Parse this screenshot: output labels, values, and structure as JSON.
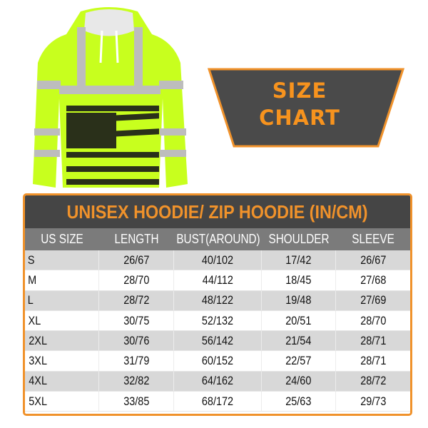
{
  "banner": {
    "line1": "SIZE",
    "line2": "CHART"
  },
  "colors": {
    "accent_orange": "#f0922b",
    "title_bg": "#454545",
    "header_bg": "#7b7b7b",
    "hoodie_green": "#c8ff1e"
  },
  "table": {
    "title": "UNISEX HOODIE/ ZIP HOODIE (IN/CM)",
    "columns": [
      "US SIZE",
      "LENGTH",
      "BUST(AROUND)",
      "SHOULDER",
      "SLEEVE"
    ],
    "rows": [
      [
        "S",
        "26/67",
        "40/102",
        "17/42",
        "26/67"
      ],
      [
        "M",
        "28/70",
        "44/112",
        "18/45",
        "27/68"
      ],
      [
        "L",
        "28/72",
        "48/122",
        "19/48",
        "27/69"
      ],
      [
        "XL",
        "30/75",
        "52/132",
        "20/51",
        "28/70"
      ],
      [
        "2XL",
        "30/76",
        "56/142",
        "21/54",
        "28/71"
      ],
      [
        "3XL",
        "31/79",
        "60/152",
        "22/57",
        "28/71"
      ],
      [
        "4XL",
        "32/82",
        "64/162",
        "24/60",
        "28/72"
      ],
      [
        "5XL",
        "33/85",
        "68/172",
        "25/63",
        "29/73"
      ]
    ]
  }
}
